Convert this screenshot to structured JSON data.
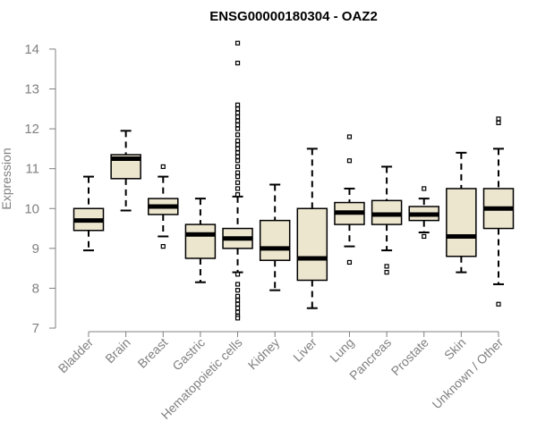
{
  "chart_data": {
    "type": "boxplot",
    "title": "ENSG00000180304 - OAZ2",
    "ylabel": "Expression",
    "xlabel": "",
    "ylim": [
      7,
      14.2
    ],
    "yticks": [
      7,
      8,
      9,
      10,
      11,
      12,
      13,
      14
    ],
    "colors": {
      "box_fill": "#ede6cf",
      "stroke": "#000000",
      "axis": "#808080"
    },
    "categories": [
      "Bladder",
      "Brain",
      "Breast",
      "Gastric",
      "Hematopoietic cells",
      "Kidney",
      "Liver",
      "Lung",
      "Pancreas",
      "Prostate",
      "Skin",
      "Unknown / Other"
    ],
    "boxes": [
      {
        "min": 8.95,
        "q1": 9.45,
        "median": 9.7,
        "q3": 10.0,
        "max": 10.8,
        "outliers": []
      },
      {
        "min": 9.95,
        "q1": 10.75,
        "median": 11.25,
        "q3": 11.35,
        "max": 11.95,
        "outliers": []
      },
      {
        "min": 9.3,
        "q1": 9.85,
        "median": 10.05,
        "q3": 10.25,
        "max": 10.8,
        "outliers": [
          11.05,
          9.05
        ]
      },
      {
        "min": 8.15,
        "q1": 8.75,
        "median": 9.35,
        "q3": 9.6,
        "max": 10.25,
        "outliers": []
      },
      {
        "min": 8.4,
        "q1": 9.0,
        "median": 9.25,
        "q3": 9.5,
        "max": 10.3,
        "outliers": [
          14.15,
          13.65,
          12.6,
          12.5,
          12.4,
          12.3,
          12.2,
          12.1,
          12.0,
          11.85,
          11.7,
          11.6,
          11.5,
          11.4,
          11.3,
          11.2,
          11.05,
          10.9,
          10.8,
          10.65,
          10.5,
          10.35,
          8.35,
          8.1,
          7.95,
          7.8,
          7.7,
          7.6,
          7.5,
          7.4,
          7.3,
          7.25
        ]
      },
      {
        "min": 7.95,
        "q1": 8.7,
        "median": 9.0,
        "q3": 9.7,
        "max": 10.6,
        "outliers": []
      },
      {
        "min": 7.5,
        "q1": 8.2,
        "median": 8.75,
        "q3": 10.0,
        "max": 11.5,
        "outliers": []
      },
      {
        "min": 9.05,
        "q1": 9.6,
        "median": 9.9,
        "q3": 10.15,
        "max": 10.5,
        "outliers": [
          11.8,
          11.2,
          8.65
        ]
      },
      {
        "min": 8.95,
        "q1": 9.6,
        "median": 9.85,
        "q3": 10.2,
        "max": 11.05,
        "outliers": [
          8.55,
          8.4
        ]
      },
      {
        "min": 9.4,
        "q1": 9.7,
        "median": 9.85,
        "q3": 10.05,
        "max": 10.25,
        "outliers": [
          10.5,
          9.3
        ]
      },
      {
        "min": 8.4,
        "q1": 8.8,
        "median": 9.3,
        "q3": 10.5,
        "max": 11.4,
        "outliers": []
      },
      {
        "min": 8.1,
        "q1": 9.5,
        "median": 10.0,
        "q3": 10.5,
        "max": 11.5,
        "outliers": [
          12.25,
          12.15,
          7.6
        ]
      }
    ]
  }
}
